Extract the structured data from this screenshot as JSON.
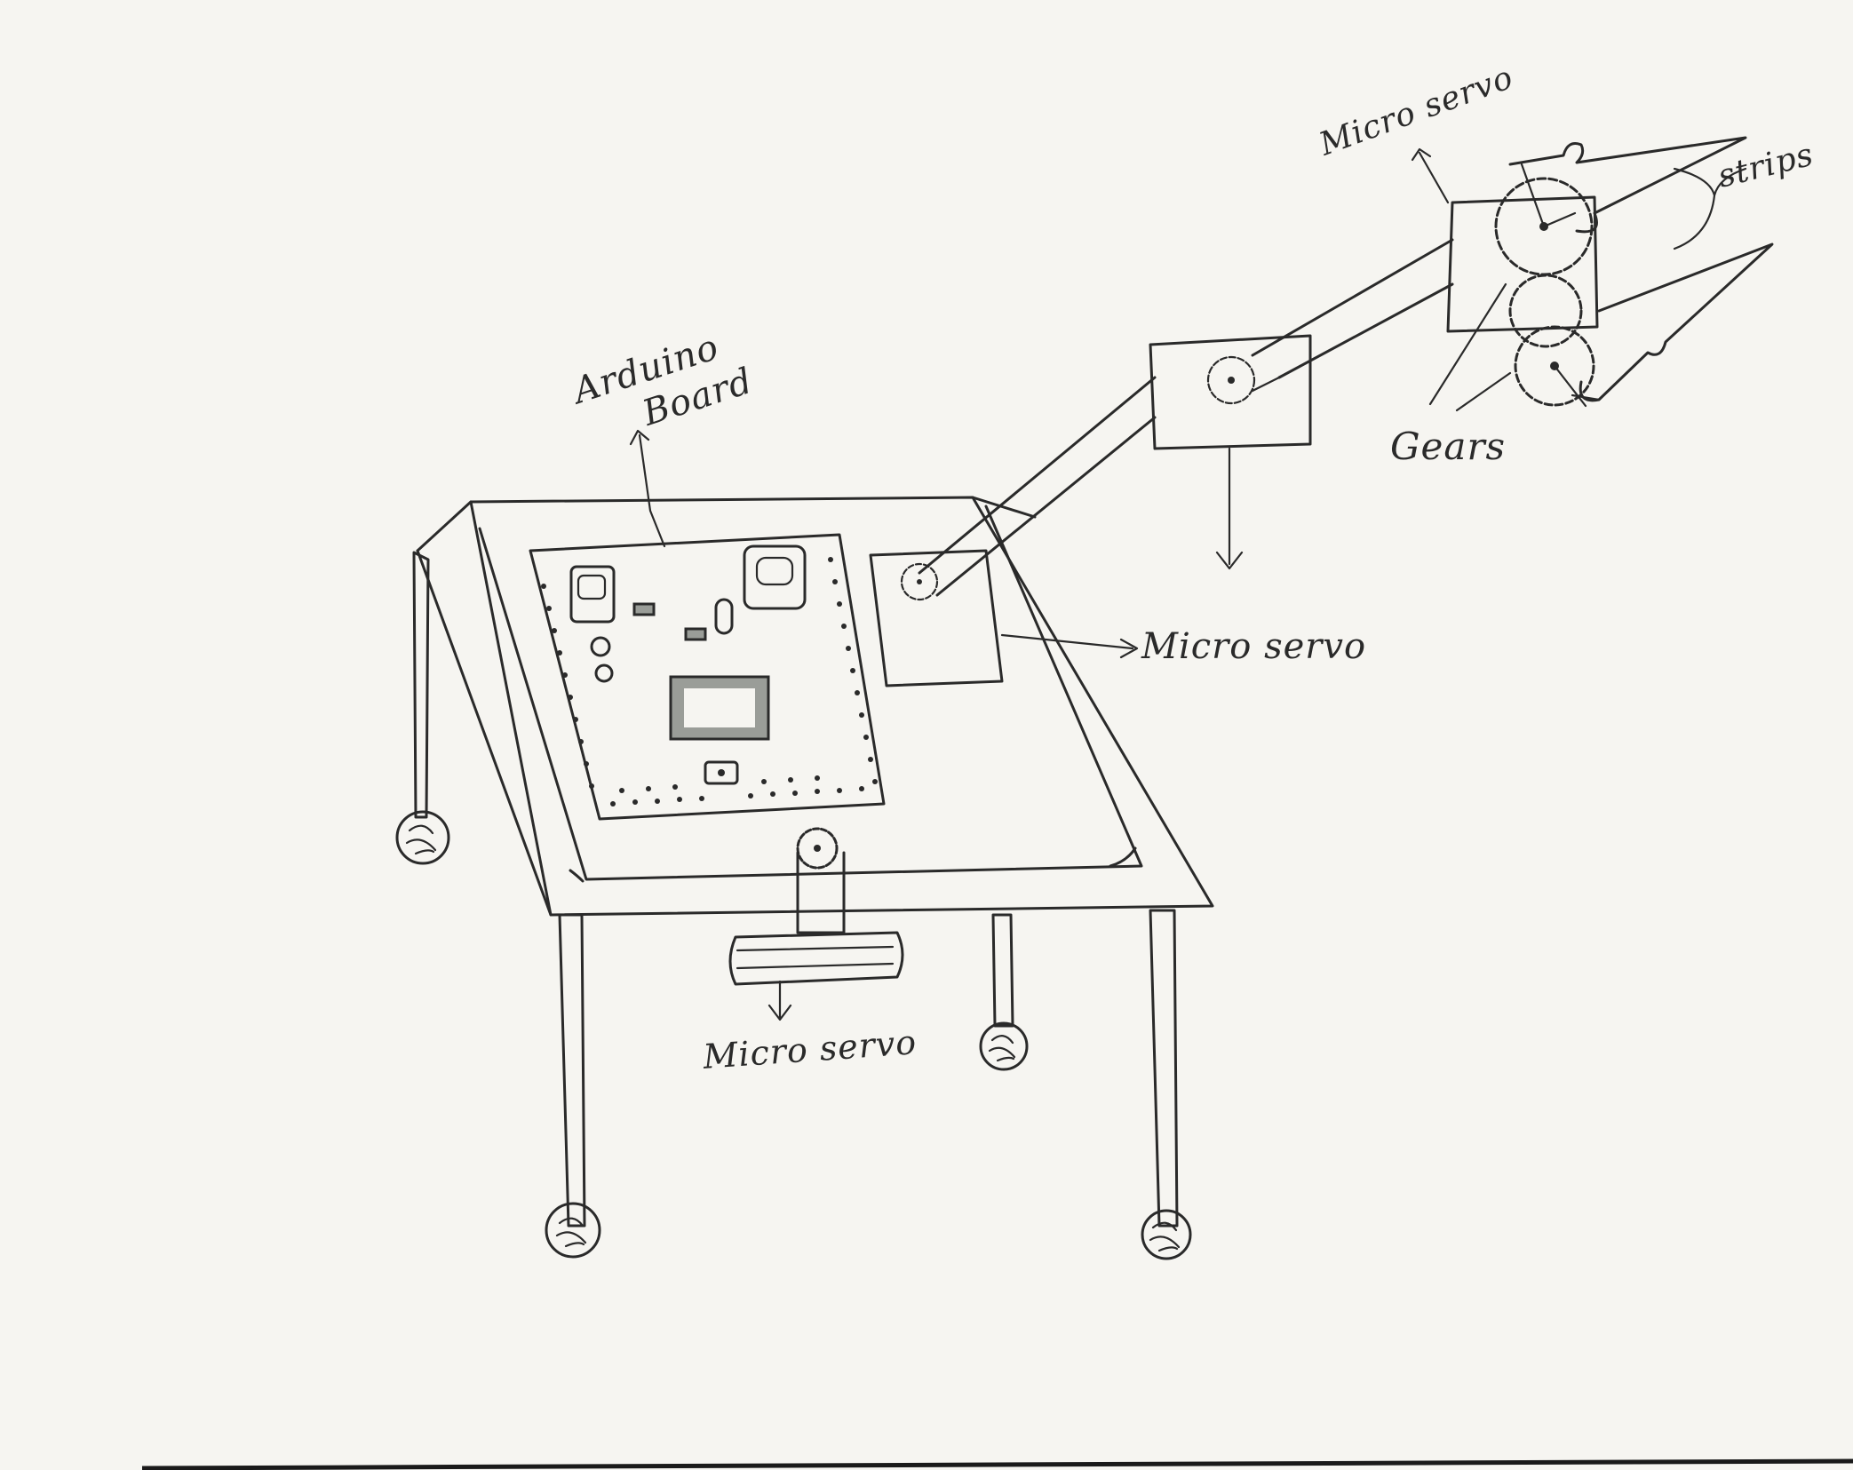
{
  "labels": {
    "arduino_line1": "Arduino",
    "arduino_line2": "Board",
    "micro_servo_gripper": "Micro servo",
    "strips": "strips",
    "gears": "Gears",
    "micro_servo_board": "Micro servo",
    "micro_servo_base": "Micro servo"
  },
  "colors": {
    "paper": "#f6f5f1",
    "ink": "#2a2a2a",
    "chip": "#9a9d98"
  },
  "icons": {
    "wheel": "wheel-icon",
    "gear": "gear-icon",
    "arrow": "arrow-icon"
  }
}
